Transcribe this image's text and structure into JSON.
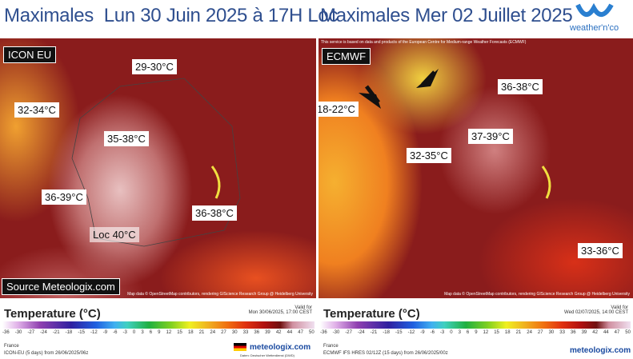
{
  "header": {
    "left_title": "Maximales  Lun 30 Juin 2025 à 17H Loc",
    "right_title": "Maximales Mer 02 Juillet 2025",
    "logo": "weather'n'co"
  },
  "left_map": {
    "model": "ICON EU",
    "source": "Source Meteologix.com",
    "labels": [
      "29-30°C",
      "32-34°C",
      "35-38°C",
      "36-39°C",
      "36-38°C",
      "Loc 40°C"
    ],
    "attribution": "Map data © OpenStreetMap contributors, rendering GIScience Research Group @ Heidelberg University"
  },
  "right_map": {
    "model": "ECMWF",
    "notice": "This service is based on data and products of the European Centre for Medium-range Weather Forecasts (ECMWF)",
    "labels": [
      "36-38°C",
      "18-22°C",
      "37-39°C",
      "32-35°C",
      "33-36°C"
    ],
    "attribution": "Map data © OpenStreetMap contributors, rendering GIScience Research Group @ Heidelberg University"
  },
  "legend": {
    "title": "Temperature (°C)",
    "scale": [
      -36,
      -30,
      -27,
      -24,
      -21,
      -18,
      -15,
      -12,
      -9,
      -6,
      -3,
      0,
      3,
      6,
      9,
      12,
      15,
      18,
      21,
      24,
      27,
      30,
      33,
      36,
      39,
      42,
      44,
      47,
      50
    ]
  },
  "left_footer": {
    "valid_label": "Valid for",
    "valid": "Mon 30/06/2025, 17:00 CEST",
    "region": "France",
    "run": "ICON-EU (5 days) from 26/06/2025/06z",
    "brand": "meteologix.com",
    "credit": "Daten: Deutscher Wetterdienst (DWD)"
  },
  "right_footer": {
    "valid_label": "Valid for",
    "valid": "Wed 02/07/2025, 14:00 CEST",
    "region": "France",
    "run": "ECMWF IFS HRES 02/12Z (15 days) from 26/06/2025/00z",
    "brand": "meteologix.com"
  }
}
